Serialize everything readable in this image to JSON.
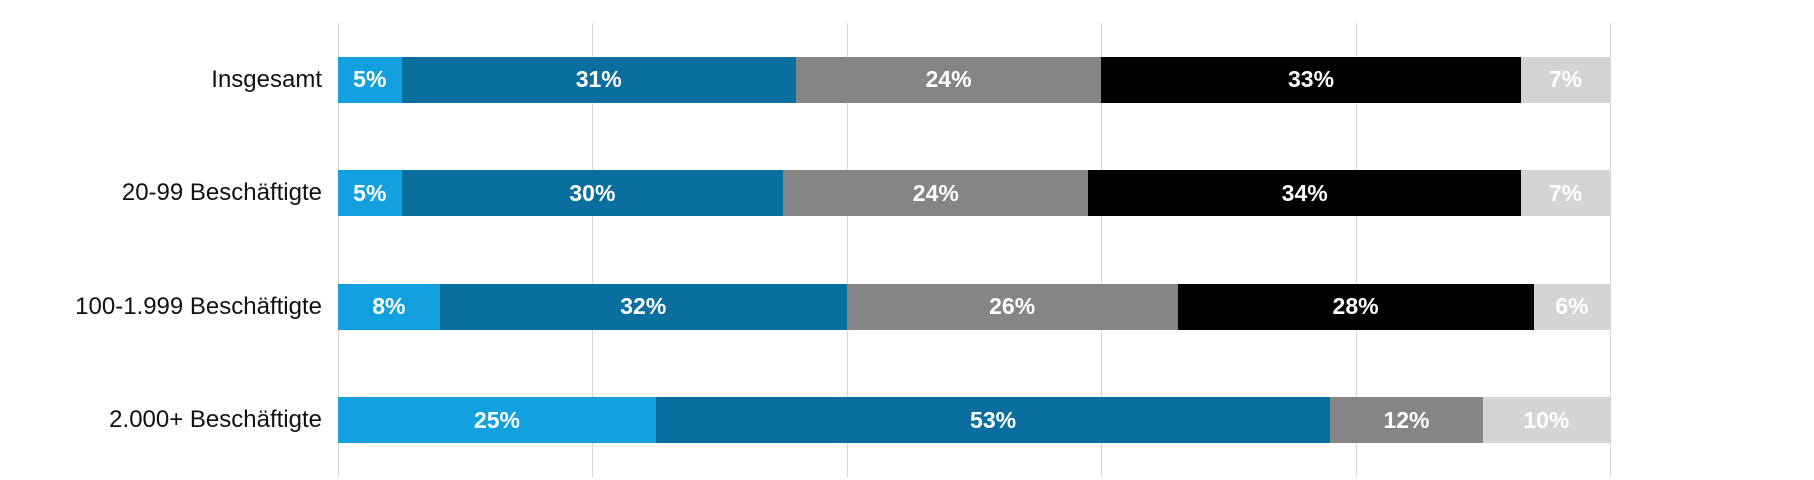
{
  "chart_data": {
    "type": "bar",
    "orientation": "horizontal",
    "stacked": true,
    "title": "",
    "xlabel": "",
    "ylabel": "",
    "unit": "%",
    "xlim": [
      0,
      100
    ],
    "grid": true,
    "gridlines_percent": [
      0,
      20,
      40,
      60,
      80,
      100
    ],
    "grid_color": "#d7d7d7",
    "label_format": "{v}%",
    "value_label_color": "#ffffff",
    "category_label_color": "#111111",
    "categories": [
      "Insgesamt",
      "20-99 Beschäftigte",
      "100-1.999 Beschäftigte",
      "2.000+ Beschäftigte"
    ],
    "series": [
      {
        "name": "light-blue",
        "color": "#12a0de",
        "values": [
          5,
          5,
          8,
          25
        ]
      },
      {
        "name": "dark-blue",
        "color": "#0a6f9e",
        "values": [
          31,
          30,
          32,
          53
        ]
      },
      {
        "name": "gray",
        "color": "#858585",
        "values": [
          24,
          24,
          26,
          12
        ]
      },
      {
        "name": "black",
        "color": "#000000",
        "values": [
          33,
          34,
          28,
          0
        ]
      },
      {
        "name": "light-gray",
        "color": "#d4d4d4",
        "values": [
          7,
          7,
          6,
          10
        ]
      }
    ],
    "legend": "none"
  }
}
